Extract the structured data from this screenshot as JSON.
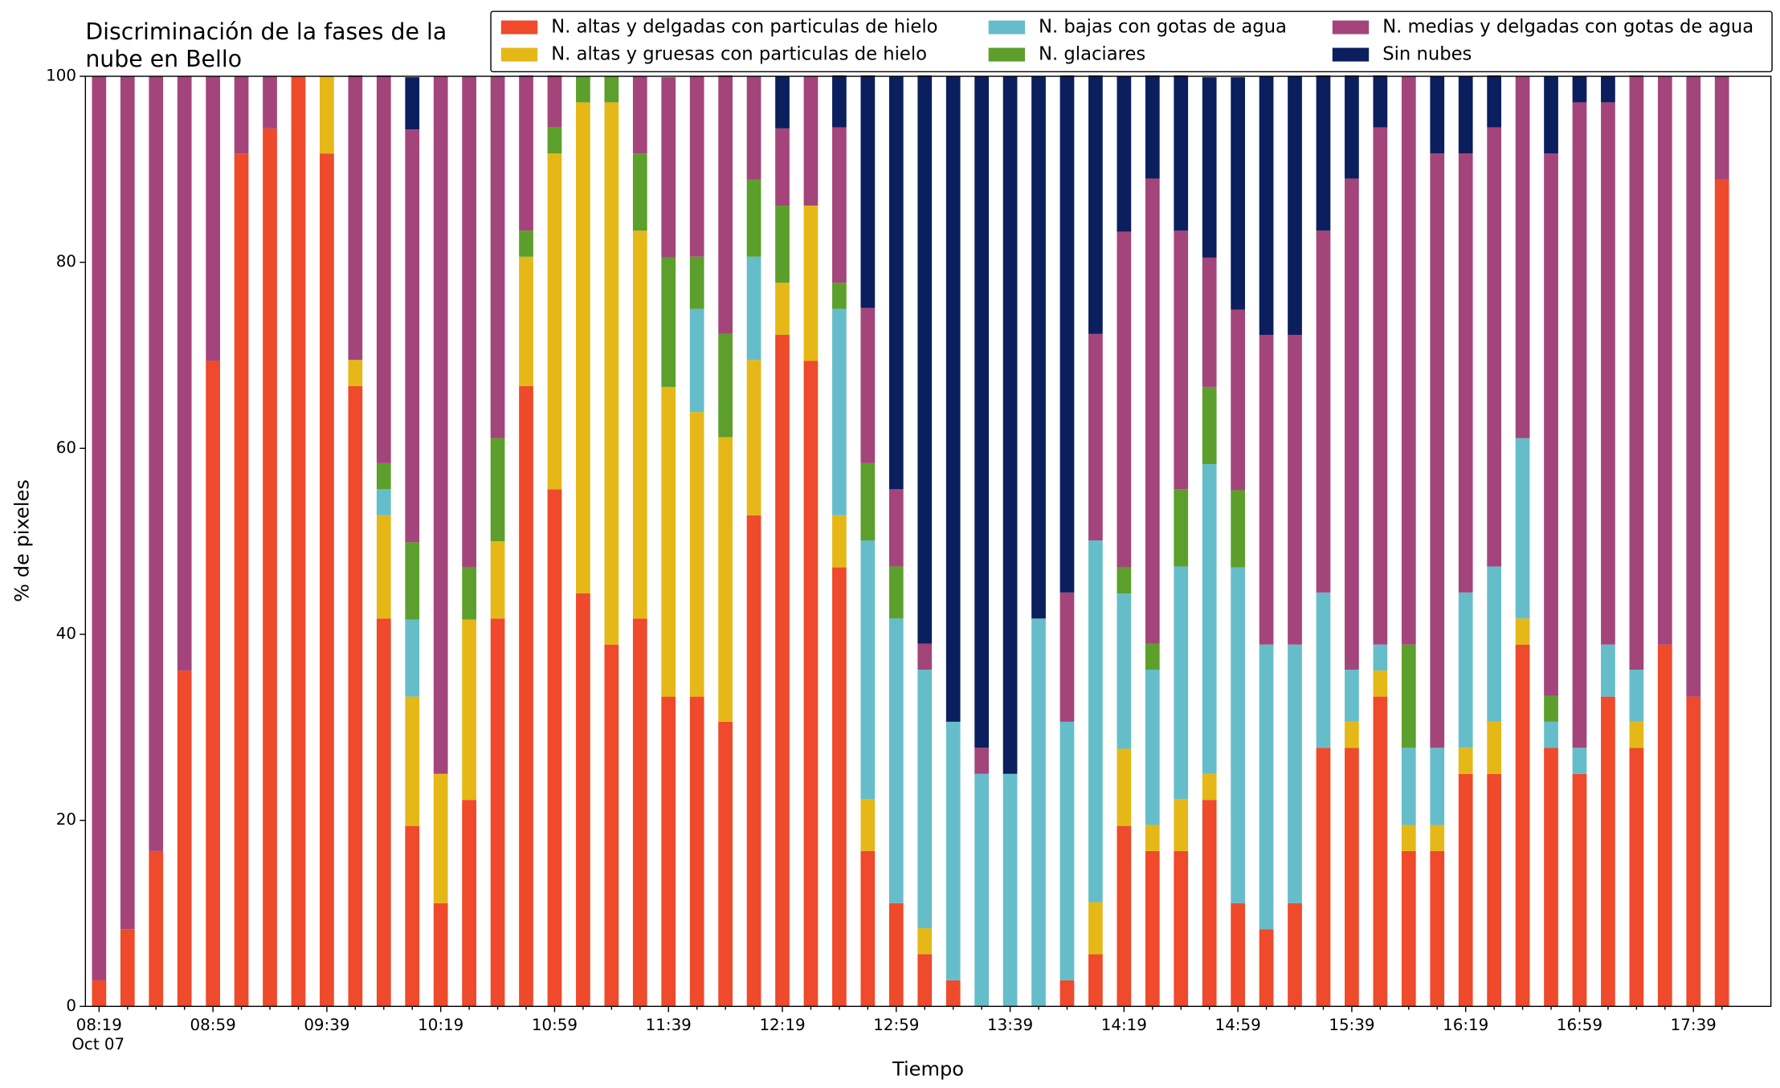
{
  "chart_data": {
    "type": "stacked_bar",
    "title": [
      "Discriminación de la fases de la",
      "nube en Bello"
    ],
    "xlabel": "Tiempo",
    "ylabel": "% de pixeles",
    "x_date_label": "Oct 07",
    "categories": [
      "08:19",
      null,
      null,
      null,
      "08:59",
      null,
      null,
      null,
      "09:39",
      null,
      null,
      null,
      "10:19",
      null,
      null,
      null,
      "10:59",
      null,
      null,
      null,
      "11:39",
      null,
      null,
      null,
      "12:19",
      null,
      null,
      null,
      "12:59",
      null,
      null,
      null,
      "13:39",
      null,
      null,
      null,
      "14:19",
      null,
      null,
      null,
      "14:59",
      null,
      null,
      null,
      "15:39",
      null,
      null,
      null,
      "16:19",
      null,
      null,
      null,
      "16:59",
      null,
      null,
      null,
      "17:39",
      null
    ],
    "ylim": [
      0,
      100
    ],
    "yticks": [
      0,
      20,
      40,
      60,
      80,
      100
    ],
    "legend": "top",
    "series": [
      {
        "name": "N. altas y delgadas con particulas de hielo",
        "color": "#ee4a2b",
        "values": [
          2.8,
          8.3,
          16.7,
          36.1,
          69.4,
          91.7,
          94.4,
          100,
          91.7,
          66.7,
          41.7,
          19.4,
          11.1,
          22.2,
          41.7,
          66.7,
          55.6,
          44.4,
          38.9,
          41.7,
          33.3,
          33.3,
          30.6,
          52.8,
          72.2,
          69.4,
          47.2,
          16.7,
          11.1,
          5.6,
          2.8,
          0,
          0,
          0,
          2.8,
          5.6,
          19.4,
          16.7,
          16.7,
          22.2,
          11.1,
          8.3,
          11.1,
          27.8,
          27.8,
          33.3,
          16.7,
          16.7,
          25,
          25,
          38.9,
          27.8,
          25,
          33.3,
          27.8,
          38.9,
          33.3,
          88.9
        ]
      },
      {
        "name": "N. altas y gruesas con particulas de hielo",
        "color": "#e5b818",
        "values": [
          0,
          0,
          0,
          0,
          0,
          0,
          0,
          0,
          8.3,
          2.8,
          11.1,
          13.9,
          13.9,
          19.4,
          8.3,
          13.9,
          36.1,
          52.8,
          58.3,
          41.7,
          33.3,
          30.6,
          30.6,
          16.7,
          5.6,
          16.7,
          5.6,
          5.6,
          0,
          2.8,
          0,
          0,
          0,
          0,
          0,
          5.6,
          8.3,
          2.8,
          5.6,
          2.8,
          0,
          0,
          0,
          0,
          2.8,
          2.8,
          2.8,
          2.8,
          2.8,
          5.6,
          2.8,
          0,
          0,
          0,
          2.8,
          0,
          0,
          0
        ]
      },
      {
        "name": "N. bajas con gotas de agua",
        "color": "#66bdca",
        "values": [
          0,
          0,
          0,
          0,
          0,
          0,
          0,
          0,
          0,
          0,
          2.8,
          8.3,
          0,
          0,
          0,
          0,
          0,
          0,
          0,
          0,
          0,
          11.1,
          0,
          11.1,
          0,
          0,
          22.2,
          27.8,
          30.6,
          27.8,
          27.8,
          25,
          25,
          41.7,
          27.8,
          38.9,
          16.7,
          16.7,
          25,
          33.3,
          36.1,
          30.6,
          27.8,
          16.7,
          5.6,
          2.8,
          8.3,
          8.3,
          16.7,
          16.7,
          19.4,
          2.8,
          2.8,
          5.6,
          5.6,
          0,
          0,
          0
        ]
      },
      {
        "name": "N. glaciares",
        "color": "#5c9f2c",
        "values": [
          0,
          0,
          0,
          0,
          0,
          0,
          0,
          0,
          0,
          0,
          2.8,
          8.3,
          0,
          5.6,
          11.1,
          2.8,
          2.8,
          2.8,
          2.8,
          8.3,
          13.9,
          5.6,
          11.1,
          8.3,
          8.3,
          0,
          2.8,
          8.3,
          5.6,
          0,
          0,
          0,
          0,
          0,
          0,
          0,
          2.8,
          2.8,
          8.3,
          8.3,
          8.3,
          0,
          0,
          0,
          0,
          0,
          11.1,
          0,
          0,
          0,
          0,
          2.8,
          0,
          0,
          0,
          0,
          0,
          0
        ]
      },
      {
        "name": "N. medias y delgadas con gotas de agua",
        "color": "#a3457a",
        "values": [
          97.2,
          91.7,
          83.3,
          63.9,
          30.6,
          8.3,
          5.6,
          0,
          0,
          30.6,
          41.7,
          44.4,
          75,
          52.8,
          38.9,
          16.7,
          5.6,
          0,
          0,
          8.3,
          19.4,
          19.4,
          27.8,
          11.1,
          8.3,
          13.9,
          16.7,
          16.7,
          8.3,
          2.8,
          0,
          2.8,
          0,
          0,
          13.9,
          22.2,
          36.1,
          50,
          27.8,
          13.9,
          19.4,
          33.3,
          33.3,
          38.9,
          52.8,
          55.6,
          61.1,
          63.9,
          47.2,
          47.2,
          38.9,
          58.3,
          69.4,
          58.3,
          63.9,
          61.1,
          66.7,
          11.1
        ]
      },
      {
        "name": "Sin nubes",
        "color": "#0b1f5e",
        "values": [
          0,
          0,
          0,
          0,
          0,
          0,
          0,
          0,
          0,
          0,
          0,
          5.6,
          0,
          0,
          0,
          0,
          0,
          0,
          0,
          0,
          0,
          0,
          0,
          0,
          5.6,
          0,
          5.6,
          25,
          44.4,
          61.1,
          69.4,
          72.2,
          75,
          58.3,
          55.6,
          27.8,
          16.7,
          11.1,
          16.7,
          19.4,
          25,
          27.8,
          27.8,
          16.7,
          11.1,
          5.6,
          0,
          8.3,
          8.3,
          5.6,
          0,
          8.3,
          2.8,
          2.8,
          0,
          0,
          0,
          0
        ]
      }
    ]
  }
}
